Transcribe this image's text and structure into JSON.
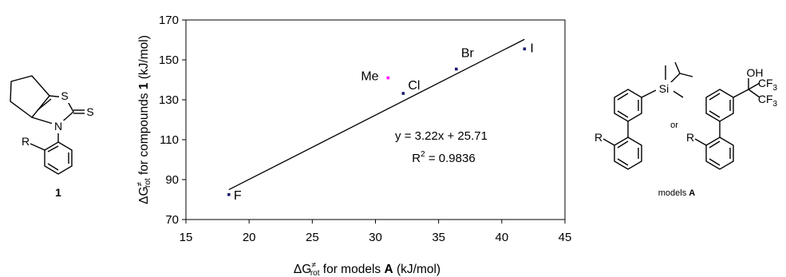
{
  "chart_data": {
    "type": "scatter",
    "xlabel": {
      "prefix": "ΔG",
      "sup": "≠",
      "sub": "rot",
      "text": " for models ",
      "bold": "A",
      "suffix": " (kJ/mol)"
    },
    "ylabel": {
      "prefix": "ΔG",
      "sup": "≠",
      "sub": "rot",
      "text": " for compounds ",
      "bold": "1",
      "suffix": " (kJ/mol)"
    },
    "xlim": [
      15,
      45
    ],
    "ylim": [
      70,
      170
    ],
    "xticks": [
      15,
      20,
      25,
      30,
      35,
      40,
      45
    ],
    "yticks": [
      70,
      90,
      110,
      130,
      150,
      170
    ],
    "points": [
      {
        "label": "F",
        "x": 18.4,
        "y": 82.5,
        "color": "#1a1a6e"
      },
      {
        "label": "Me",
        "x": 31.0,
        "y": 141.0,
        "color": "#ff00ff"
      },
      {
        "label": "Cl",
        "x": 32.2,
        "y": 133.2,
        "color": "#1a1a6e"
      },
      {
        "label": "Br",
        "x": 36.4,
        "y": 145.4,
        "color": "#1a1a6e"
      },
      {
        "label": "I",
        "x": 41.8,
        "y": 155.5,
        "color": "#1a1a6e"
      }
    ],
    "fit": {
      "slope": 3.22,
      "intercept": 25.71,
      "x_range": [
        18.4,
        41.8
      ]
    },
    "equation": "y = 3.22x + 25.71",
    "r2": {
      "prefix": "R",
      "sup": "2",
      "value": " = 0.9836"
    },
    "grid": false,
    "legend": "none"
  },
  "left_structure": {
    "atoms": {
      "s1": "S",
      "s2": "S",
      "n": "N",
      "r": "R"
    },
    "compound_label": "1"
  },
  "right_structures": {
    "atoms": {
      "si": "Si",
      "oh": "OH",
      "cf3_a": "CF",
      "cf3_a_sub": "3",
      "cf3_b": "CF",
      "cf3_b_sub": "3",
      "r1": "R",
      "r2": "R"
    },
    "or_label": "or",
    "models_text": "models ",
    "models_bold": "A"
  }
}
